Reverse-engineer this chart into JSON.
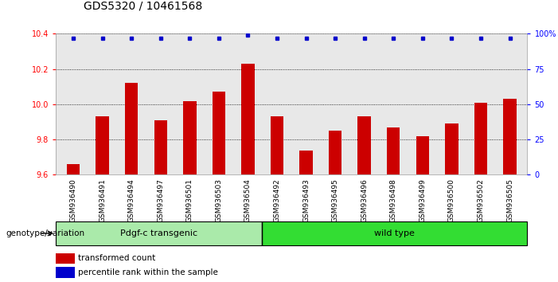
{
  "title": "GDS5320 / 10461568",
  "categories": [
    "GSM936490",
    "GSM936491",
    "GSM936494",
    "GSM936497",
    "GSM936501",
    "GSM936503",
    "GSM936504",
    "GSM936492",
    "GSM936493",
    "GSM936495",
    "GSM936496",
    "GSM936498",
    "GSM936499",
    "GSM936500",
    "GSM936502",
    "GSM936505"
  ],
  "bar_values": [
    9.66,
    9.93,
    10.12,
    9.91,
    10.02,
    10.07,
    10.23,
    9.93,
    9.74,
    9.85,
    9.93,
    9.87,
    9.82,
    9.89,
    10.01,
    10.03
  ],
  "percentile_values": [
    97,
    97,
    97,
    97,
    97,
    97,
    99,
    97,
    97,
    97,
    97,
    97,
    97,
    97,
    97,
    97
  ],
  "ylim_left": [
    9.6,
    10.4
  ],
  "ylim_right": [
    0,
    100
  ],
  "yticks_left": [
    9.6,
    9.8,
    10.0,
    10.2,
    10.4
  ],
  "yticks_right": [
    0,
    25,
    50,
    75,
    100
  ],
  "ytick_labels_right": [
    "0",
    "25",
    "50",
    "75",
    "100%"
  ],
  "bar_color": "#cc0000",
  "dot_color": "#0000cc",
  "transgenic_count": 7,
  "groups": [
    {
      "label": "Pdgf-c transgenic",
      "start": 0,
      "end": 7,
      "color": "#aaeaaa"
    },
    {
      "label": "wild type",
      "start": 7,
      "end": 16,
      "color": "#33dd33"
    }
  ],
  "group_label": "genotype/variation",
  "legend_bar_label": "transformed count",
  "legend_dot_label": "percentile rank within the sample",
  "background_color": "#ffffff",
  "plot_bg_color": "#e8e8e8",
  "grid_color": "#000000",
  "title_fontsize": 10,
  "tick_fontsize": 7,
  "label_fontsize": 8
}
